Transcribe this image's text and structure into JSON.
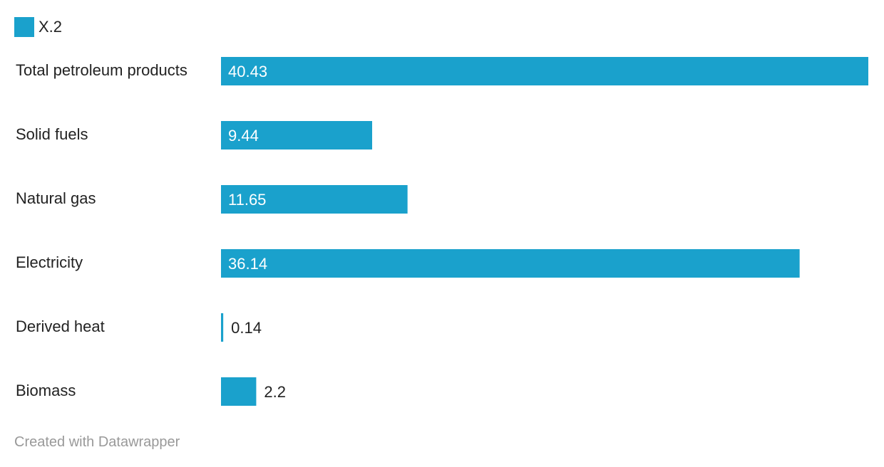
{
  "chart_data": {
    "type": "bar",
    "orientation": "horizontal",
    "categories": [
      "Total petroleum products",
      "Solid fuels",
      "Natural gas",
      "Electricity",
      "Derived heat",
      "Biomass"
    ],
    "series": [
      {
        "name": "X.2",
        "values": [
          40.43,
          9.44,
          11.65,
          36.14,
          0.14,
          2.2
        ],
        "color": "#1aa1cc"
      }
    ],
    "value_labels": [
      "40.43",
      "9.44",
      "11.65",
      "36.14",
      "0.14",
      "2.2"
    ],
    "xlim": [
      0,
      40.43
    ],
    "grid": false,
    "legend": "top-left"
  },
  "footer": "Created with Datawrapper"
}
